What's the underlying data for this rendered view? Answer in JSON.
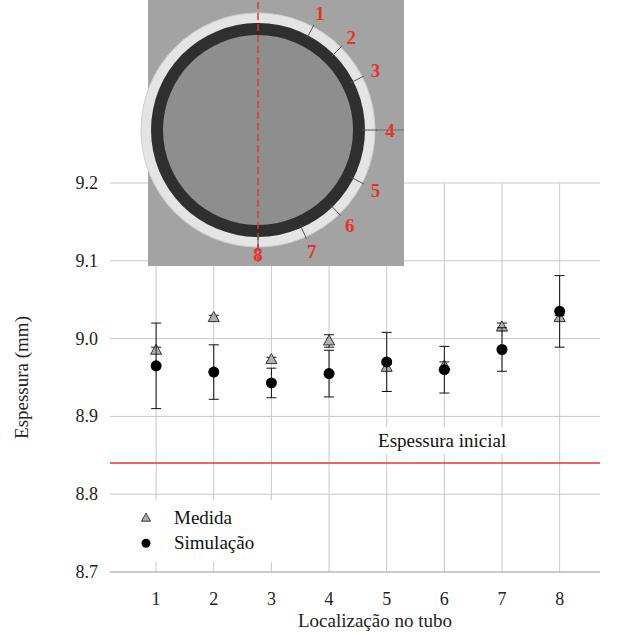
{
  "chart_data": {
    "type": "scatter",
    "x_label": "Localização no tubo",
    "y_label": "Espessura (mm)",
    "x": [
      1,
      2,
      3,
      4,
      5,
      6,
      7,
      8
    ],
    "xlim": [
      0.2,
      8.7
    ],
    "xticks": [
      1,
      2,
      3,
      4,
      5,
      6,
      7,
      8
    ],
    "ylim": [
      8.7,
      9.2
    ],
    "yticks": [
      8.7,
      8.8,
      8.9,
      {
        "value": 9.0,
        "label": "9.0"
      },
      9.1,
      9.2
    ],
    "grid": true,
    "legend": "lower left",
    "series": [
      {
        "name": "Medida",
        "color": "#b0b0b0",
        "marker": "triangle",
        "values": [
          8.985,
          9.027,
          8.973,
          8.997,
          8.963,
          8.965,
          9.015,
          9.027
        ],
        "errors": [
          0.004,
          0.003,
          0.003,
          0.008,
          0.004,
          0.005,
          0.005,
          0.003
        ]
      },
      {
        "name": "Simulação",
        "color": "#000000",
        "marker": "circle",
        "values": [
          8.965,
          8.957,
          8.943,
          8.955,
          8.97,
          8.96,
          8.986,
          9.035
        ],
        "errors": [
          0.055,
          0.035,
          0.019,
          0.03,
          0.038,
          0.03,
          0.028,
          0.046
        ]
      }
    ],
    "reference_line": {
      "value": 8.84,
      "label": "Espessura inicial",
      "color": "#e8322f"
    },
    "inset_labels": [
      "1",
      "2",
      "3",
      "4",
      "5",
      "6",
      "7",
      "8"
    ]
  }
}
